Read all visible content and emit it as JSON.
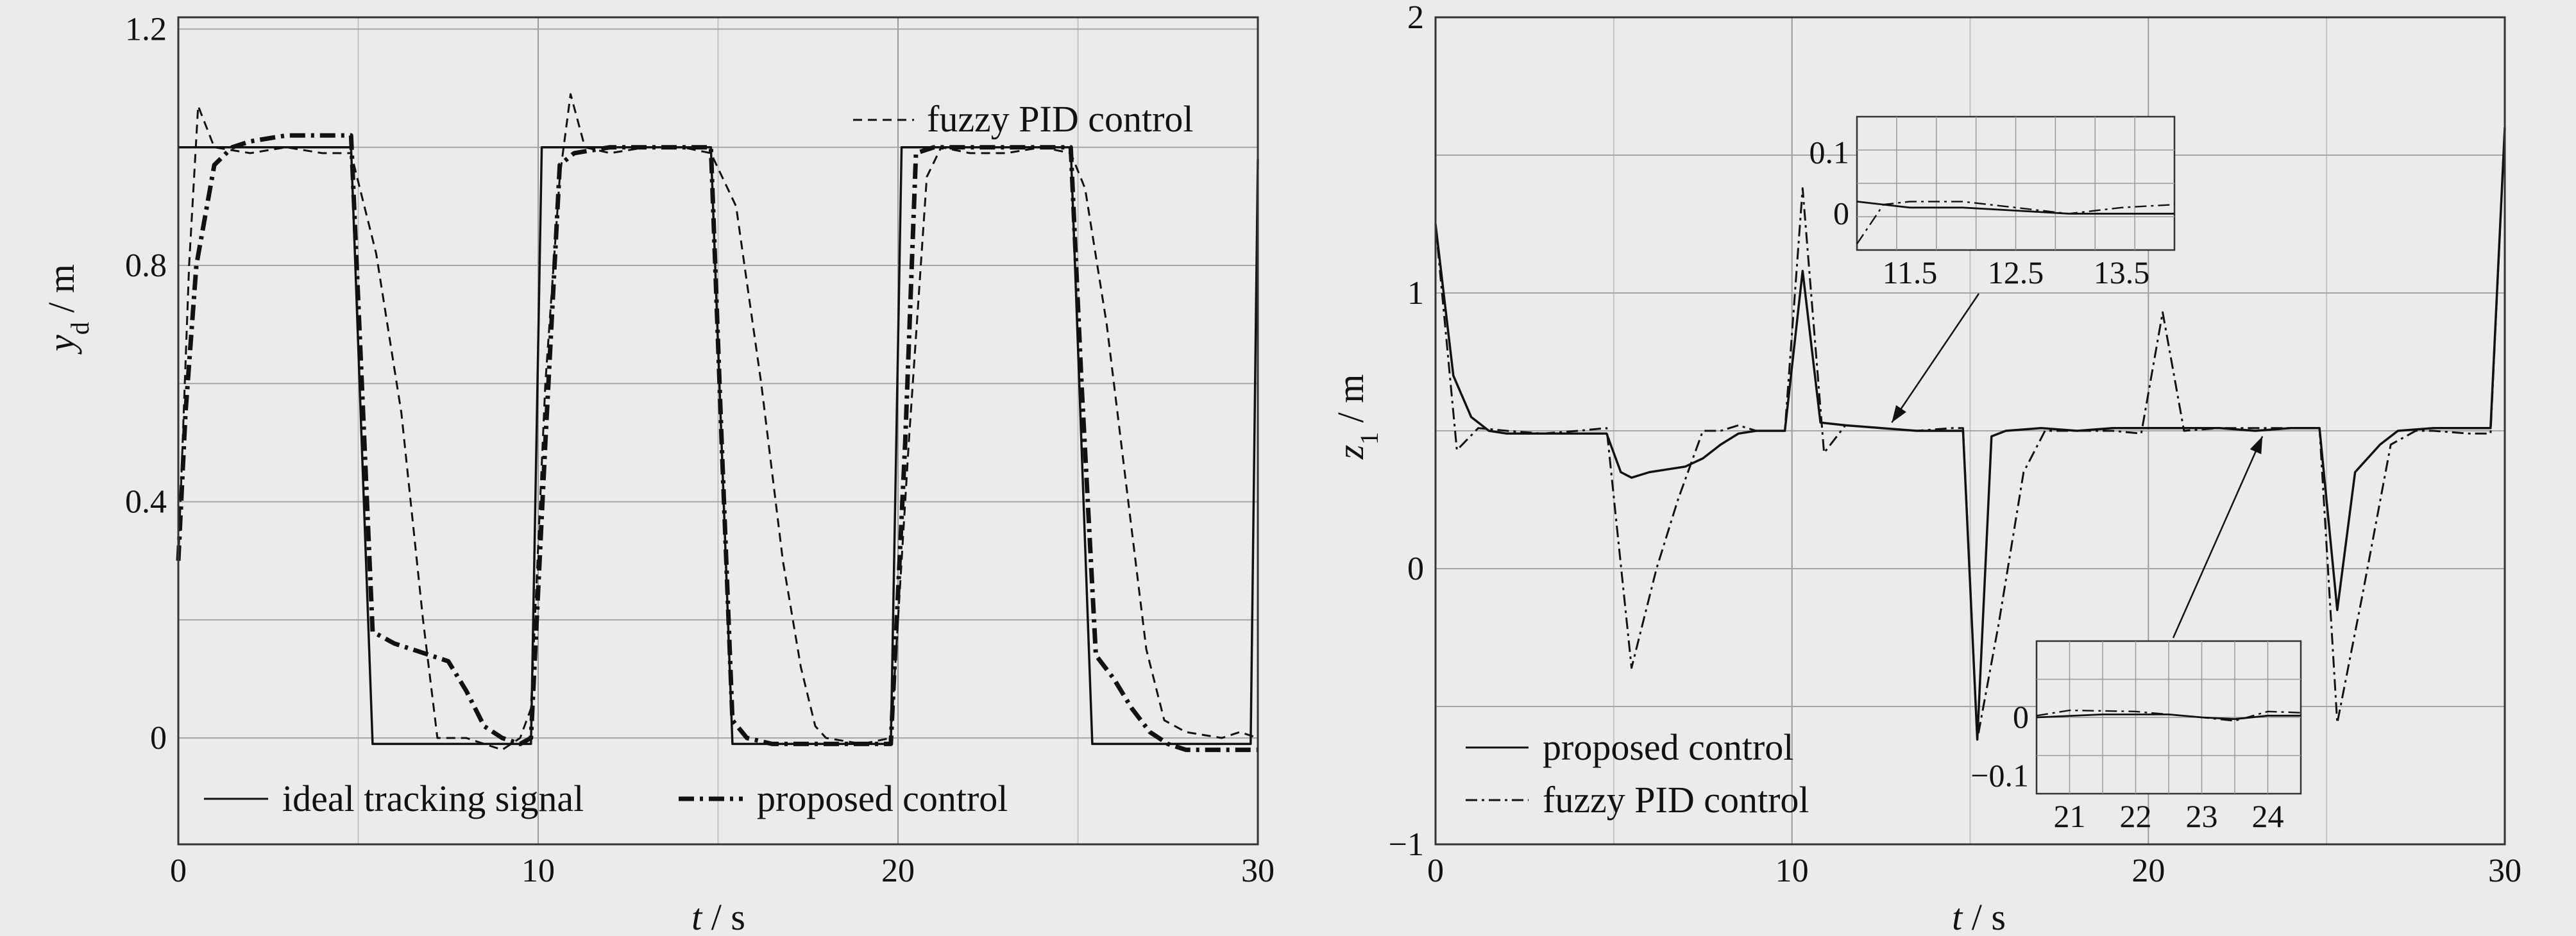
{
  "chart_data": [
    {
      "type": "line",
      "xlabel_symbol": "t",
      "xlabel_unit": "s",
      "ylabel_symbol": "y",
      "ylabel_sub": "d",
      "ylabel_unit": "m",
      "xlim": [
        0,
        30
      ],
      "ylim": [
        -0.18,
        1.22
      ],
      "xticks": [
        0,
        10,
        20,
        30
      ],
      "xtick_labels": [
        "0",
        "10",
        "20",
        "30"
      ],
      "yticks": [
        0,
        0.4,
        0.8,
        1.2
      ],
      "ytick_labels": [
        "0",
        "0.4",
        "0.8",
        "1.2"
      ],
      "grid": true,
      "legend": [
        "top-right",
        "bottom"
      ],
      "series": [
        {
          "name": "ideal tracking signal",
          "style": "solid",
          "points": [
            [
              0,
              1
            ],
            [
              4.8,
              1
            ],
            [
              5.4,
              -0.01
            ],
            [
              9.8,
              -0.01
            ],
            [
              10.1,
              1
            ],
            [
              14.8,
              1
            ],
            [
              15.4,
              -0.01
            ],
            [
              19.8,
              -0.01
            ],
            [
              20.1,
              1
            ],
            [
              24.8,
              1
            ],
            [
              25.4,
              -0.01
            ],
            [
              29.8,
              -0.01
            ],
            [
              30,
              0.98
            ]
          ]
        },
        {
          "name": "fuzzy PID control",
          "style": "dashed",
          "points": [
            [
              0,
              0.3
            ],
            [
              0.3,
              0.8
            ],
            [
              0.55,
              1.07
            ],
            [
              1,
              1
            ],
            [
              2,
              0.99
            ],
            [
              3,
              1
            ],
            [
              4,
              0.99
            ],
            [
              4.8,
              0.99
            ],
            [
              5.5,
              0.82
            ],
            [
              6.2,
              0.55
            ],
            [
              6.8,
              0.2
            ],
            [
              7.2,
              0
            ],
            [
              8,
              0
            ],
            [
              9,
              -0.02
            ],
            [
              9.5,
              0
            ],
            [
              9.8,
              0.05
            ],
            [
              10.2,
              0.6
            ],
            [
              10.6,
              0.95
            ],
            [
              10.9,
              1.09
            ],
            [
              11.3,
              1
            ],
            [
              12,
              0.99
            ],
            [
              13,
              1
            ],
            [
              14,
              1
            ],
            [
              14.8,
              0.99
            ],
            [
              15.5,
              0.9
            ],
            [
              16.2,
              0.6
            ],
            [
              16.8,
              0.3
            ],
            [
              17.3,
              0.12
            ],
            [
              17.7,
              0.02
            ],
            [
              18,
              0
            ],
            [
              19,
              -0.01
            ],
            [
              19.8,
              0
            ],
            [
              20.3,
              0.5
            ],
            [
              20.8,
              0.95
            ],
            [
              21.2,
              1
            ],
            [
              22,
              0.99
            ],
            [
              23,
              0.99
            ],
            [
              24,
              1
            ],
            [
              24.8,
              0.99
            ],
            [
              25.2,
              0.93
            ],
            [
              25.8,
              0.7
            ],
            [
              26.4,
              0.4
            ],
            [
              26.9,
              0.15
            ],
            [
              27.4,
              0.03
            ],
            [
              28,
              0.01
            ],
            [
              29,
              0
            ],
            [
              29.5,
              0.01
            ],
            [
              30,
              0
            ]
          ]
        },
        {
          "name": "proposed control",
          "style": "dashdot-bold",
          "points": [
            [
              0,
              0.3
            ],
            [
              0.2,
              0.55
            ],
            [
              0.5,
              0.8
            ],
            [
              1,
              0.97
            ],
            [
              1.5,
              1
            ],
            [
              2,
              1.01
            ],
            [
              3,
              1.02
            ],
            [
              4,
              1.02
            ],
            [
              4.8,
              1.02
            ],
            [
              5.1,
              0.6
            ],
            [
              5.4,
              0.18
            ],
            [
              6,
              0.16
            ],
            [
              6.5,
              0.15
            ],
            [
              7,
              0.14
            ],
            [
              7.5,
              0.13
            ],
            [
              8,
              0.08
            ],
            [
              8.5,
              0.02
            ],
            [
              9,
              0
            ],
            [
              9.5,
              -0.01
            ],
            [
              9.8,
              0
            ],
            [
              10.2,
              0.5
            ],
            [
              10.6,
              0.97
            ],
            [
              11,
              0.99
            ],
            [
              12,
              1
            ],
            [
              13,
              1
            ],
            [
              14,
              1
            ],
            [
              14.8,
              1
            ],
            [
              15.1,
              0.5
            ],
            [
              15.4,
              0.03
            ],
            [
              15.8,
              0
            ],
            [
              16.5,
              -0.01
            ],
            [
              18,
              -0.01
            ],
            [
              19,
              -0.01
            ],
            [
              19.8,
              -0.01
            ],
            [
              20.2,
              0.5
            ],
            [
              20.5,
              0.99
            ],
            [
              21,
              1
            ],
            [
              22,
              1
            ],
            [
              23,
              1
            ],
            [
              24,
              1
            ],
            [
              24.8,
              1
            ],
            [
              25.1,
              0.6
            ],
            [
              25.5,
              0.14
            ],
            [
              26,
              0.1
            ],
            [
              26.5,
              0.05
            ],
            [
              27,
              0.01
            ],
            [
              27.5,
              -0.01
            ],
            [
              28,
              -0.02
            ],
            [
              29,
              -0.02
            ],
            [
              30,
              -0.02
            ]
          ]
        }
      ]
    },
    {
      "type": "line",
      "xlabel_symbol": "t",
      "xlabel_unit": "s",
      "ylabel_symbol": "z",
      "ylabel_sub": "1",
      "ylabel_unit": "m",
      "xlim": [
        0,
        30
      ],
      "ylim": [
        -1,
        2
      ],
      "xticks": [
        0,
        10,
        20,
        30
      ],
      "xtick_labels": [
        "0",
        "10",
        "20",
        "30"
      ],
      "yticks": [
        -1,
        0,
        1,
        2
      ],
      "ytick_labels": [
        "−1",
        "0",
        "1",
        "2"
      ],
      "grid": true,
      "legend": "bottom-left",
      "series": [
        {
          "name": "proposed control",
          "style": "solid",
          "points": [
            [
              0,
              1.25
            ],
            [
              0.5,
              0.7
            ],
            [
              1,
              0.55
            ],
            [
              1.5,
              0.5
            ],
            [
              2,
              0.49
            ],
            [
              3,
              0.49
            ],
            [
              4,
              0.49
            ],
            [
              4.8,
              0.49
            ],
            [
              5.2,
              0.35
            ],
            [
              5.5,
              0.33
            ],
            [
              6,
              0.35
            ],
            [
              6.5,
              0.36
            ],
            [
              7,
              0.37
            ],
            [
              7.5,
              0.4
            ],
            [
              8,
              0.45
            ],
            [
              8.5,
              0.49
            ],
            [
              9,
              0.5
            ],
            [
              9.5,
              0.5
            ],
            [
              9.8,
              0.5
            ],
            [
              10.3,
              1.08
            ],
            [
              10.8,
              0.53
            ],
            [
              11.5,
              0.52
            ],
            [
              12.5,
              0.51
            ],
            [
              13.5,
              0.5
            ],
            [
              14.5,
              0.5
            ],
            [
              14.8,
              0.5
            ],
            [
              15.2,
              -0.62
            ],
            [
              15.6,
              0.48
            ],
            [
              16,
              0.5
            ],
            [
              17,
              0.51
            ],
            [
              18,
              0.5
            ],
            [
              19,
              0.51
            ],
            [
              20,
              0.51
            ],
            [
              21,
              0.51
            ],
            [
              22,
              0.51
            ],
            [
              23,
              0.5
            ],
            [
              24,
              0.51
            ],
            [
              24.8,
              0.51
            ],
            [
              25.3,
              -0.15
            ],
            [
              25.8,
              0.35
            ],
            [
              26.5,
              0.45
            ],
            [
              27,
              0.5
            ],
            [
              28,
              0.51
            ],
            [
              29,
              0.51
            ],
            [
              29.6,
              0.51
            ],
            [
              30,
              1.6
            ]
          ]
        },
        {
          "name": "fuzzy PID control",
          "style": "dashdot",
          "points": [
            [
              0,
              1.25
            ],
            [
              0.6,
              0.43
            ],
            [
              1.2,
              0.51
            ],
            [
              2,
              0.5
            ],
            [
              3,
              0.49
            ],
            [
              4,
              0.5
            ],
            [
              4.8,
              0.51
            ],
            [
              5.5,
              -0.36
            ],
            [
              6.2,
              0
            ],
            [
              6.8,
              0.25
            ],
            [
              7.5,
              0.5
            ],
            [
              8,
              0.5
            ],
            [
              8.5,
              0.52
            ],
            [
              9,
              0.5
            ],
            [
              9.8,
              0.5
            ],
            [
              10.3,
              1.38
            ],
            [
              10.9,
              0.42
            ],
            [
              11.5,
              0.52
            ],
            [
              12.5,
              0.51
            ],
            [
              13.5,
              0.5
            ],
            [
              14.5,
              0.51
            ],
            [
              14.8,
              0.51
            ],
            [
              15.2,
              -0.62
            ],
            [
              15.8,
              -0.2
            ],
            [
              16.5,
              0.35
            ],
            [
              17.1,
              0.5
            ],
            [
              18,
              0.5
            ],
            [
              19,
              0.5
            ],
            [
              19.8,
              0.49
            ],
            [
              20.4,
              0.93
            ],
            [
              21,
              0.5
            ],
            [
              22,
              0.51
            ],
            [
              23,
              0.51
            ],
            [
              24,
              0.51
            ],
            [
              24.8,
              0.51
            ],
            [
              25.3,
              -0.56
            ],
            [
              26,
              -0.1
            ],
            [
              26.8,
              0.45
            ],
            [
              27.5,
              0.5
            ],
            [
              28,
              0.5
            ],
            [
              29,
              0.49
            ],
            [
              29.6,
              0.49
            ],
            [
              30,
              1.6
            ]
          ]
        }
      ],
      "insets": [
        {
          "xlim": [
            11,
            14
          ],
          "ylim": [
            -0.06,
            0.16
          ],
          "xticks": [
            11.5,
            12.5,
            13.5
          ],
          "xtick_labels": [
            "11.5",
            "12.5",
            "13.5"
          ],
          "yticks": [
            0,
            0.1
          ],
          "ytick_labels": [
            "0",
            "0.1"
          ],
          "arrow_target": [
            12.8,
            0.53
          ],
          "series": [
            {
              "name": "proposed control",
              "style": "solid",
              "points": [
                [
                  11,
                  0.02
                ],
                [
                  11.5,
                  0.01
                ],
                [
                  12,
                  0.01
                ],
                [
                  12.5,
                  0.005
                ],
                [
                  13,
                  0.0
                ],
                [
                  13.5,
                  0.0
                ],
                [
                  14,
                  0.0
                ]
              ]
            },
            {
              "name": "fuzzy PID control",
              "style": "dashdot",
              "points": [
                [
                  11,
                  -0.05
                ],
                [
                  11.25,
                  0.015
                ],
                [
                  11.5,
                  0.02
                ],
                [
                  12,
                  0.02
                ],
                [
                  12.5,
                  0.01
                ],
                [
                  13,
                  0.0
                ],
                [
                  13.5,
                  0.01
                ],
                [
                  14,
                  0.015
                ]
              ]
            }
          ]
        },
        {
          "xlim": [
            20.5,
            24.5
          ],
          "ylim": [
            -0.13,
            0.13
          ],
          "xticks": [
            21,
            22,
            23,
            24
          ],
          "xtick_labels": [
            "21",
            "22",
            "23",
            "24"
          ],
          "yticks": [
            -0.1,
            0
          ],
          "ytick_labels": [
            "−0.1",
            "0"
          ],
          "arrow_target": [
            23.2,
            0.48
          ],
          "series": [
            {
              "name": "proposed control",
              "style": "solid",
              "points": [
                [
                  20.5,
                  0
                ],
                [
                  21.5,
                  0.005
                ],
                [
                  22.5,
                  0.005
                ],
                [
                  23,
                  0
                ],
                [
                  23.5,
                  -0.003
                ],
                [
                  24,
                  0.003
                ],
                [
                  24.5,
                  0.003
                ]
              ]
            },
            {
              "name": "fuzzy PID control",
              "style": "dashdot",
              "points": [
                [
                  20.5,
                  0.003
                ],
                [
                  21,
                  0.012
                ],
                [
                  22,
                  0.01
                ],
                [
                  23,
                  0
                ],
                [
                  23.5,
                  -0.006
                ],
                [
                  24,
                  0.01
                ],
                [
                  24.5,
                  0.008
                ]
              ]
            }
          ]
        }
      ]
    }
  ]
}
